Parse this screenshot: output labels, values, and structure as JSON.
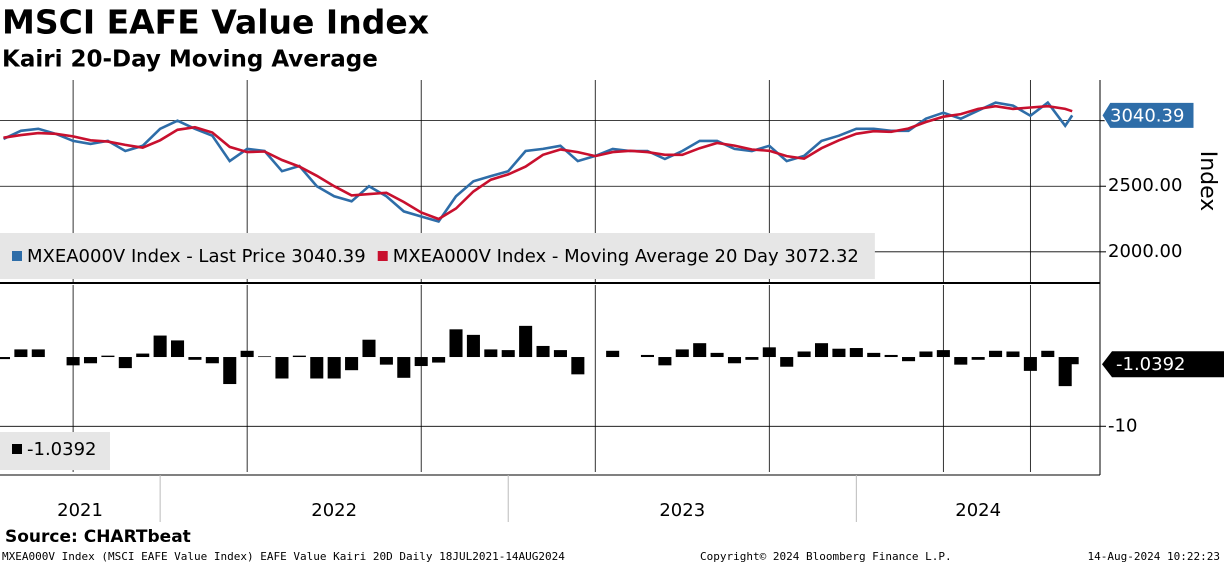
{
  "header": {
    "title": "MSCI EAFE Value Index",
    "subtitle": "Kairi 20-Day Moving Average"
  },
  "time_axis": {
    "xlim": [
      2021.54,
      2024.7
    ],
    "boundaries": [
      2022,
      2023,
      2024
    ],
    "labels": [
      "2021",
      "2022",
      "2023",
      "2024"
    ]
  },
  "chart_data": [
    {
      "type": "line",
      "y_label": "Index",
      "grid": true,
      "legend": "bottom-left",
      "xlim": [
        2021.54,
        2024.7
      ],
      "xticks": [
        2021.75,
        2022.25,
        2022.75,
        2023.25,
        2023.75,
        2024.25,
        2024.5
      ],
      "ylim": [
        1770,
        3310
      ],
      "yticks": [
        {
          "value": 2000,
          "label": "2000.00"
        },
        {
          "value": 2500,
          "label": "2500.00"
        },
        {
          "value": 3000,
          "label": "3000.00"
        }
      ],
      "x": [
        2021.55,
        2021.6,
        2021.65,
        2021.7,
        2021.75,
        2021.8,
        2021.85,
        2021.9,
        2021.95,
        2022.0,
        2022.05,
        2022.1,
        2022.15,
        2022.2,
        2022.25,
        2022.3,
        2022.35,
        2022.4,
        2022.45,
        2022.5,
        2022.55,
        2022.6,
        2022.65,
        2022.7,
        2022.75,
        2022.8,
        2022.85,
        2022.9,
        2022.95,
        2023.0,
        2023.05,
        2023.1,
        2023.15,
        2023.2,
        2023.25,
        2023.3,
        2023.35,
        2023.4,
        2023.45,
        2023.5,
        2023.55,
        2023.6,
        2023.65,
        2023.7,
        2023.75,
        2023.8,
        2023.85,
        2023.9,
        2023.95,
        2024.0,
        2024.05,
        2024.1,
        2024.15,
        2024.2,
        2024.25,
        2024.3,
        2024.35,
        2024.4,
        2024.45,
        2024.5,
        2024.55,
        2024.6,
        2024.62
      ],
      "series": [
        {
          "name": "MXEA000V Index - Last Price 3040.39",
          "color": "#2e6da8",
          "values": [
            2861,
            2923,
            2938,
            2900,
            2846,
            2823,
            2846,
            2769,
            2808,
            2938,
            3000,
            2938,
            2885,
            2692,
            2785,
            2769,
            2615,
            2654,
            2500,
            2423,
            2385,
            2500,
            2423,
            2308,
            2269,
            2231,
            2423,
            2538,
            2577,
            2615,
            2769,
            2785,
            2808,
            2692,
            2731,
            2785,
            2769,
            2769,
            2708,
            2769,
            2846,
            2846,
            2785,
            2769,
            2808,
            2692,
            2731,
            2846,
            2885,
            2938,
            2938,
            2923,
            2923,
            3015,
            3061,
            3015,
            3077,
            3138,
            3115,
            3038,
            3138,
            2961,
            3040.39
          ]
        },
        {
          "name": "MXEA000V Index - Moving Average 20 Day 3072.32",
          "color": "#c8102e",
          "values": [
            2870,
            2890,
            2905,
            2900,
            2880,
            2850,
            2840,
            2815,
            2795,
            2850,
            2930,
            2950,
            2910,
            2800,
            2760,
            2765,
            2700,
            2650,
            2580,
            2500,
            2430,
            2440,
            2450,
            2380,
            2300,
            2250,
            2330,
            2460,
            2550,
            2590,
            2650,
            2740,
            2780,
            2760,
            2730,
            2760,
            2770,
            2760,
            2740,
            2740,
            2790,
            2830,
            2810,
            2780,
            2770,
            2730,
            2710,
            2790,
            2850,
            2900,
            2920,
            2915,
            2940,
            2990,
            3030,
            3050,
            3090,
            3110,
            3090,
            3100,
            3110,
            3090,
            3072.32
          ]
        }
      ]
    },
    {
      "type": "bar",
      "grid": true,
      "xlim": [
        2021.54,
        2024.7
      ],
      "xticks": [
        2021.75,
        2022.25,
        2022.75,
        2023.25,
        2023.75,
        2024.25,
        2024.5
      ],
      "ylim": [
        -16.6,
        10.4
      ],
      "yticks": [
        -10
      ],
      "x": [
        2021.55,
        2021.6,
        2021.65,
        2021.7,
        2021.75,
        2021.8,
        2021.85,
        2021.9,
        2021.95,
        2022.0,
        2022.05,
        2022.1,
        2022.15,
        2022.2,
        2022.25,
        2022.3,
        2022.35,
        2022.4,
        2022.45,
        2022.5,
        2022.55,
        2022.6,
        2022.65,
        2022.7,
        2022.75,
        2022.8,
        2022.85,
        2022.9,
        2022.95,
        2023.0,
        2023.05,
        2023.1,
        2023.15,
        2023.2,
        2023.25,
        2023.3,
        2023.35,
        2023.4,
        2023.45,
        2023.5,
        2023.55,
        2023.6,
        2023.65,
        2023.7,
        2023.75,
        2023.8,
        2023.85,
        2023.9,
        2023.95,
        2024.0,
        2024.05,
        2024.1,
        2024.15,
        2024.2,
        2024.25,
        2024.3,
        2024.35,
        2024.4,
        2024.45,
        2024.5,
        2024.55,
        2024.6,
        2024.62
      ],
      "series": [
        {
          "color": "#000000",
          "values": [
            -0.3,
            1.1,
            1.1,
            0,
            -1.2,
            -0.9,
            0.2,
            -1.6,
            0.5,
            3.1,
            2.4,
            -0.4,
            -0.9,
            -3.9,
            0.9,
            0.1,
            -3.1,
            0.2,
            -3.1,
            -3.1,
            -1.9,
            2.5,
            -1.1,
            -3.0,
            -1.3,
            -0.8,
            4.0,
            3.2,
            1.1,
            1.0,
            4.5,
            1.6,
            1.0,
            -2.5,
            0,
            0.9,
            0,
            0.3,
            -1.2,
            1.1,
            2.0,
            0.6,
            -0.9,
            -0.4,
            1.4,
            -1.4,
            0.8,
            2.0,
            1.2,
            1.3,
            0.6,
            0.3,
            -0.6,
            0.8,
            1.0,
            -1.1,
            -0.4,
            0.9,
            0.8,
            -2.0,
            0.9,
            -4.2,
            -1.0392
          ]
        }
      ]
    }
  ],
  "footer": {
    "source": "Source: CHARTbeat",
    "description": "MXEA000V Index (MSCI EAFE Value Index) EAFE Value Kairi 20D  Daily 18JUL2021-14AUG2024",
    "copyright": "Copyright© 2024 Bloomberg Finance L.P.",
    "timestamp": "14-Aug-2024 10:22:23"
  }
}
